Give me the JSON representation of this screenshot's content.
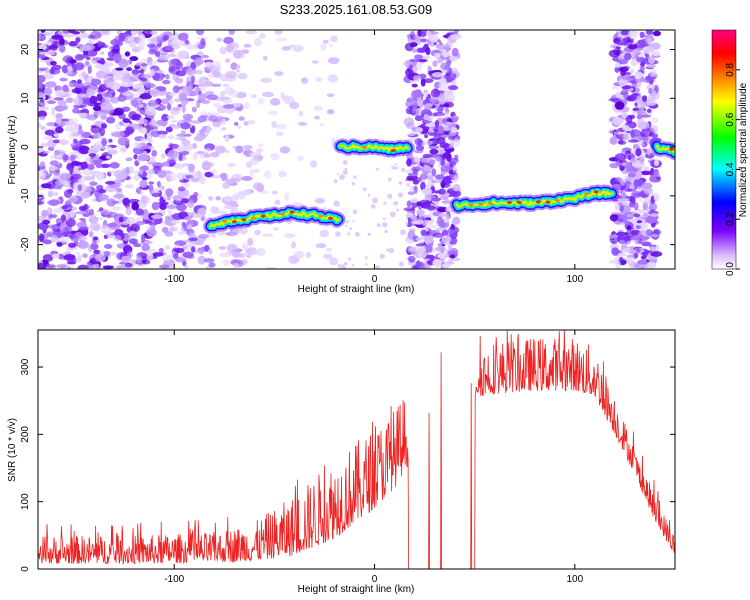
{
  "title": "S233.2025.161.08.53.G09",
  "chart_data": [
    {
      "type": "heatmap",
      "xlabel": "Height of straight line (km)",
      "ylabel": "Frequency (Hz)",
      "xlim": [
        -168,
        150
      ],
      "ylim": [
        -25,
        24
      ],
      "xticks": [
        -100,
        0,
        100
      ],
      "yticks": [
        -20,
        -10,
        0,
        10,
        20
      ],
      "colorbar": {
        "label": "Normalized spectral amplitude",
        "range": [
          0.0,
          0.96
        ],
        "ticks": [
          "0.0",
          "0.2",
          "0.4",
          "0.6",
          "0.8"
        ],
        "colors": [
          "#ffffff",
          "#7a00ff",
          "#0000ff",
          "#00ffff",
          "#00ff00",
          "#ffff00",
          "#ff7f00",
          "#ff0000",
          "#ff0080"
        ]
      },
      "ridge_segments": [
        {
          "x": [
            -82,
            -70,
            -60,
            -50,
            -40,
            -30,
            -18
          ],
          "freq": [
            -16,
            -15,
            -14.5,
            -14,
            -13.5,
            -14,
            -15
          ]
        },
        {
          "x": [
            -17,
            -8,
            0,
            8,
            17
          ],
          "freq": [
            0,
            0,
            0,
            -0.5,
            0
          ]
        },
        {
          "x": [
            41,
            60,
            80,
            100,
            110,
            119
          ],
          "freq": [
            -12,
            -11.5,
            -11.5,
            -10.5,
            -9.5,
            -9.5
          ]
        },
        {
          "x": [
            141,
            150
          ],
          "freq": [
            0,
            -1
          ]
        }
      ],
      "noise_bands": [
        [
          -168,
          -70
        ],
        [
          17,
          41
        ],
        [
          119,
          141
        ]
      ]
    },
    {
      "type": "line",
      "xlabel": "Height of straight line (km)",
      "ylabel": "SNR (10 * v/v)",
      "xlim": [
        -168,
        150
      ],
      "ylim": [
        0,
        355
      ],
      "xticks": [
        -100,
        0,
        100
      ],
      "yticks": [
        0,
        100,
        200,
        300
      ],
      "color": "#ee2222",
      "envelope": {
        "x": [
          -168,
          -120,
          -80,
          -60,
          -40,
          -20,
          0,
          10,
          20,
          30,
          40,
          50,
          60,
          80,
          100,
          110,
          120,
          130,
          140,
          150
        ],
        "low": [
          8,
          8,
          10,
          12,
          20,
          45,
          90,
          120,
          170,
          220,
          250,
          255,
          260,
          265,
          265,
          255,
          200,
          140,
          70,
          20
        ],
        "high": [
          50,
          50,
          55,
          70,
          110,
          165,
          210,
          240,
          280,
          300,
          318,
          330,
          340,
          345,
          345,
          330,
          260,
          180,
          110,
          50
        ]
      },
      "gaps": [
        [
          17,
          27
        ],
        [
          27.5,
          33
        ],
        [
          33.5,
          48
        ],
        [
          48.5,
          50
        ]
      ]
    }
  ]
}
